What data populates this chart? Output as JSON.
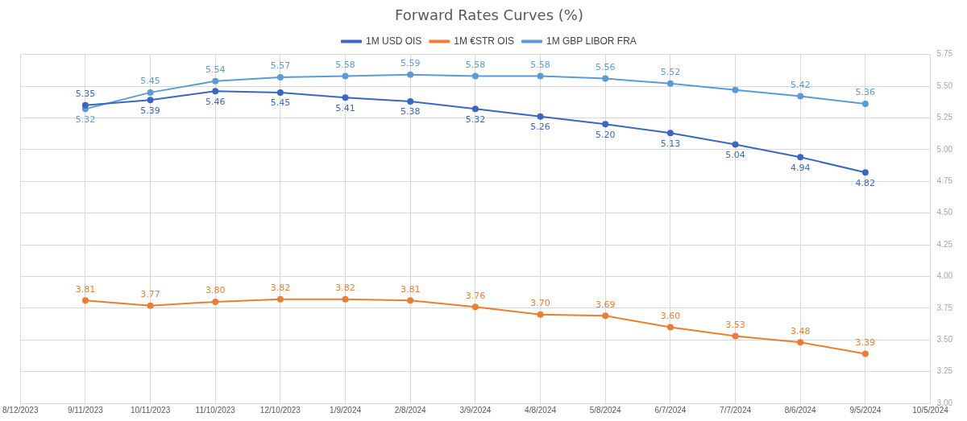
{
  "chart_data": {
    "type": "line",
    "title": "Forward Rates Curves (%)",
    "x": [
      "2023-09-11",
      "2023-10-11",
      "2023-11-10",
      "2023-12-10",
      "2024-01-09",
      "2024-02-08",
      "2024-03-09",
      "2024-04-08",
      "2024-05-08",
      "2024-06-07",
      "2024-07-07",
      "2024-08-06",
      "2024-09-05"
    ],
    "series": [
      {
        "name": "1M USD OIS",
        "color": "#3a66c4",
        "values": [
          5.35,
          5.39,
          5.46,
          5.45,
          5.41,
          5.38,
          5.32,
          5.26,
          5.2,
          5.13,
          5.04,
          4.94,
          4.82
        ],
        "value_labels": [
          "5.35",
          "5.39",
          "5.46",
          "5.45",
          "5.41",
          "5.38",
          "5.32",
          "5.26",
          "5.20",
          "5.13",
          "5.04",
          "4.94",
          "4.82"
        ]
      },
      {
        "name": "1M €STR OIS",
        "color": "#ed7d31",
        "values": [
          3.81,
          3.77,
          3.8,
          3.82,
          3.82,
          3.81,
          3.76,
          3.7,
          3.69,
          3.6,
          3.53,
          3.48,
          3.39
        ],
        "value_labels": [
          "3.81",
          "3.77",
          "3.80",
          "3.82",
          "3.82",
          "3.81",
          "3.76",
          "3.70",
          "3.69",
          "3.60",
          "3.53",
          "3.48",
          "3.39"
        ]
      },
      {
        "name": "1M GBP LIBOR FRA",
        "color": "#5b9bd5",
        "values": [
          5.32,
          5.45,
          5.54,
          5.57,
          5.58,
          5.59,
          5.58,
          5.58,
          5.56,
          5.52,
          5.47,
          5.42,
          5.36
        ],
        "value_labels": [
          "5.32",
          "5.45",
          "5.54",
          "5.57",
          "5.58",
          "5.59",
          "5.58",
          "5.58",
          "5.56",
          "5.52",
          null,
          "5.42",
          "5.36"
        ]
      }
    ],
    "xlim": [
      "2023-08-12",
      "2024-10-05"
    ],
    "xticks": [
      {
        "value": "2023-08-12",
        "label": "8/12/2023"
      },
      {
        "value": "2023-09-11",
        "label": "9/11/2023"
      },
      {
        "value": "2023-10-11",
        "label": "10/11/2023"
      },
      {
        "value": "2023-11-10",
        "label": "11/10/2023"
      },
      {
        "value": "2023-12-10",
        "label": "12/10/2023"
      },
      {
        "value": "2024-01-09",
        "label": "1/9/2024"
      },
      {
        "value": "2024-02-08",
        "label": "2/8/2024"
      },
      {
        "value": "2024-03-09",
        "label": "3/9/2024"
      },
      {
        "value": "2024-04-08",
        "label": "4/8/2024"
      },
      {
        "value": "2024-05-08",
        "label": "5/8/2024"
      },
      {
        "value": "2024-06-07",
        "label": "6/7/2024"
      },
      {
        "value": "2024-07-07",
        "label": "7/7/2024"
      },
      {
        "value": "2024-08-06",
        "label": "8/6/2024"
      },
      {
        "value": "2024-09-05",
        "label": "9/5/2024"
      },
      {
        "value": "2024-10-05",
        "label": "10/5/2024"
      }
    ],
    "ylim": [
      3.0,
      5.75
    ],
    "yticks": [
      {
        "value": 3.0,
        "label": "3.00"
      },
      {
        "value": 3.25,
        "label": "3.25"
      },
      {
        "value": 3.5,
        "label": "3.50"
      },
      {
        "value": 3.75,
        "label": "3.75"
      },
      {
        "value": 4.0,
        "label": "4.00"
      },
      {
        "value": 4.25,
        "label": "4.25"
      },
      {
        "value": 4.5,
        "label": "4.50"
      },
      {
        "value": 4.75,
        "label": "4.75"
      },
      {
        "value": 5.0,
        "label": "5.00"
      },
      {
        "value": 5.25,
        "label": "5.25"
      },
      {
        "value": 5.5,
        "label": "5.50"
      },
      {
        "value": 5.75,
        "label": "5.75"
      }
    ],
    "grid": true,
    "legend": "top",
    "marker": "circle",
    "line_style": "solid"
  }
}
